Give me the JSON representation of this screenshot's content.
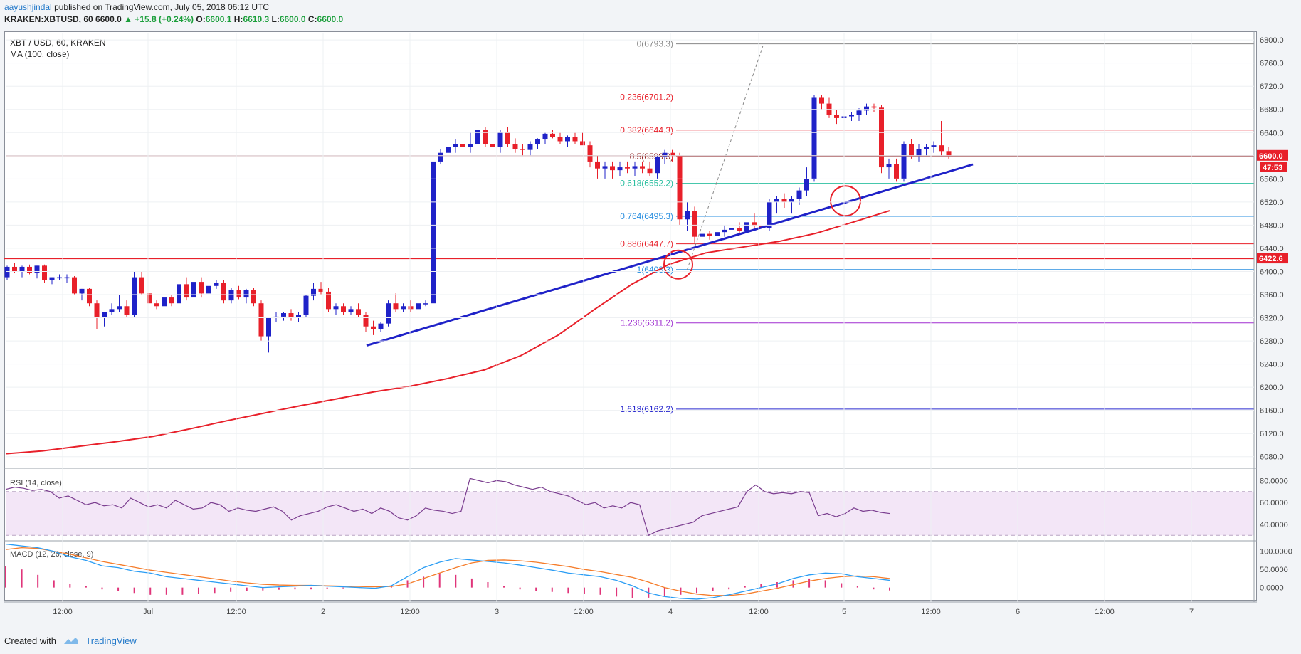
{
  "header": {
    "author": "aayushjindal",
    "published": "published on TradingView.com, July 05, 2018 06:12 UTC",
    "symbol": "KRAKEN:XBTUSD,",
    "tf": "60",
    "price": "6600.0",
    "change": "▲ +15.8 (+0.24%)",
    "o_label": "O:",
    "o_val": "6600.1",
    "h_label": "H:",
    "h_val": "6610.3",
    "l_label": "L:",
    "l_val": "6600.0",
    "c_label": "C:",
    "c_val": "6600.0"
  },
  "chart_title": "XBT / USD, 60, KRAKEN",
  "ma_label": "MA (100, close)",
  "rsi_label": "RSI (14, close)",
  "macd_label": "MACD (12, 26, close, 9)",
  "footer": {
    "created": "Created with",
    "brand": "TradingView"
  },
  "colors": {
    "up": "#1f22c8",
    "down": "#e8202a",
    "ma": "#e8202a",
    "trend": "#1f22c8",
    "support": "#e8202a",
    "rsi": "#7a3d8f",
    "macd": "#2a9df4",
    "signal": "#f57c2a",
    "hist": "#e0357a"
  },
  "chart_data": [
    {
      "type": "candlestick",
      "title": "XBT / USD, 60, KRAKEN",
      "y_ticks": [
        6080,
        6120,
        6160,
        6200,
        6240,
        6280,
        6320,
        6360,
        6400,
        6440,
        6480,
        6520,
        6560,
        6600,
        6640,
        6680,
        6720,
        6760,
        6800
      ],
      "x_ticks": [
        "12:00",
        "Jul",
        "12:00",
        "2",
        "12:00",
        "3",
        "12:00",
        "4",
        "12:00",
        "5",
        "12:00",
        "6",
        "12:00",
        "7"
      ],
      "ylim": [
        6060,
        6810
      ],
      "last_price": "6600.0",
      "countdown": "47:53",
      "support_price": "6422.6",
      "candles": [
        [
          6390,
          6410,
          6385,
          6408
        ],
        [
          6408,
          6415,
          6398,
          6400
        ],
        [
          6400,
          6410,
          6390,
          6408
        ],
        [
          6408,
          6412,
          6395,
          6398
        ],
        [
          6398,
          6410,
          6388,
          6410
        ],
        [
          6410,
          6412,
          6380,
          6385
        ],
        [
          6385,
          6390,
          6378,
          6390
        ],
        [
          6390,
          6395,
          6385,
          6390
        ],
        [
          6390,
          6395,
          6380,
          6390
        ],
        [
          6390,
          6392,
          6360,
          6362
        ],
        [
          6362,
          6370,
          6350,
          6370
        ],
        [
          6370,
          6372,
          6340,
          6345
        ],
        [
          6345,
          6350,
          6300,
          6320
        ],
        [
          6320,
          6330,
          6305,
          6330
        ],
        [
          6330,
          6345,
          6325,
          6335
        ],
        [
          6335,
          6360,
          6330,
          6340
        ],
        [
          6340,
          6350,
          6320,
          6325
        ],
        [
          6325,
          6400,
          6320,
          6390
        ],
        [
          6390,
          6400,
          6360,
          6362
        ],
        [
          6362,
          6365,
          6340,
          6345
        ],
        [
          6345,
          6350,
          6335,
          6340
        ],
        [
          6340,
          6360,
          6335,
          6355
        ],
        [
          6355,
          6360,
          6340,
          6345
        ],
        [
          6345,
          6382,
          6340,
          6378
        ],
        [
          6378,
          6390,
          6350,
          6355
        ],
        [
          6355,
          6385,
          6350,
          6382
        ],
        [
          6382,
          6390,
          6355,
          6362
        ],
        [
          6362,
          6380,
          6355,
          6375
        ],
        [
          6375,
          6385,
          6370,
          6380
        ],
        [
          6380,
          6385,
          6345,
          6350
        ],
        [
          6350,
          6372,
          6345,
          6368
        ],
        [
          6368,
          6375,
          6352,
          6355
        ],
        [
          6355,
          6370,
          6345,
          6368
        ],
        [
          6368,
          6372,
          6340,
          6345
        ],
        [
          6345,
          6350,
          6280,
          6288
        ],
        [
          6288,
          6320,
          6260,
          6320
        ],
        [
          6320,
          6330,
          6312,
          6322
        ],
        [
          6322,
          6330,
          6315,
          6328
        ],
        [
          6328,
          6335,
          6315,
          6320
        ],
        [
          6320,
          6330,
          6312,
          6325
        ],
        [
          6325,
          6360,
          6320,
          6358
        ],
        [
          6358,
          6380,
          6350,
          6370
        ],
        [
          6370,
          6382,
          6360,
          6365
        ],
        [
          6365,
          6372,
          6330,
          6335
        ],
        [
          6335,
          6345,
          6325,
          6340
        ],
        [
          6340,
          6345,
          6325,
          6330
        ],
        [
          6330,
          6340,
          6325,
          6335
        ],
        [
          6335,
          6345,
          6320,
          6325
        ],
        [
          6325,
          6330,
          6295,
          6305
        ],
        [
          6305,
          6315,
          6290,
          6300
        ],
        [
          6300,
          6312,
          6295,
          6310
        ],
        [
          6310,
          6350,
          6305,
          6345
        ],
        [
          6345,
          6362,
          6330,
          6335
        ],
        [
          6335,
          6345,
          6330,
          6340
        ],
        [
          6340,
          6350,
          6330,
          6335
        ],
        [
          6335,
          6350,
          6330,
          6345
        ],
        [
          6345,
          6350,
          6340,
          6345
        ],
        [
          6345,
          6600,
          6340,
          6590
        ],
        [
          6590,
          6612,
          6585,
          6605
        ],
        [
          6605,
          6625,
          6595,
          6615
        ],
        [
          6615,
          6628,
          6605,
          6620
        ],
        [
          6620,
          6640,
          6610,
          6615
        ],
        [
          6615,
          6640,
          6605,
          6620
        ],
        [
          6620,
          6648,
          6610,
          6645
        ],
        [
          6645,
          6650,
          6615,
          6620
        ],
        [
          6620,
          6640,
          6610,
          6615
        ],
        [
          6615,
          6645,
          6605,
          6640
        ],
        [
          6640,
          6650,
          6615,
          6620
        ],
        [
          6620,
          6630,
          6605,
          6612
        ],
        [
          6612,
          6620,
          6600,
          6610
        ],
        [
          6610,
          6625,
          6600,
          6620
        ],
        [
          6620,
          6630,
          6612,
          6628
        ],
        [
          6628,
          6640,
          6620,
          6638
        ],
        [
          6638,
          6645,
          6630,
          6632
        ],
        [
          6632,
          6640,
          6620,
          6625
        ],
        [
          6625,
          6635,
          6615,
          6632
        ],
        [
          6632,
          6640,
          6620,
          6625
        ],
        [
          6625,
          6640,
          6620,
          6618
        ],
        [
          6618,
          6625,
          6580,
          6590
        ],
        [
          6590,
          6600,
          6560,
          6578
        ],
        [
          6578,
          6590,
          6560,
          6582
        ],
        [
          6582,
          6590,
          6560,
          6575
        ],
        [
          6575,
          6590,
          6565,
          6580
        ],
        [
          6580,
          6590,
          6570,
          6578
        ],
        [
          6578,
          6590,
          6565,
          6582
        ],
        [
          6582,
          6590,
          6570,
          6578
        ],
        [
          6578,
          6590,
          6565,
          6570
        ],
        [
          6570,
          6600,
          6560,
          6598
        ],
        [
          6598,
          6610,
          6585,
          6605
        ],
        [
          6605,
          6610,
          6590,
          6600
        ],
        [
          6600,
          6605,
          6480,
          6490
        ],
        [
          6490,
          6520,
          6470,
          6505
        ],
        [
          6505,
          6512,
          6450,
          6460
        ],
        [
          6460,
          6470,
          6445,
          6465
        ],
        [
          6465,
          6470,
          6455,
          6462
        ],
        [
          6462,
          6475,
          6455,
          6468
        ],
        [
          6468,
          6480,
          6460,
          6472
        ],
        [
          6472,
          6490,
          6465,
          6475
        ],
        [
          6475,
          6485,
          6465,
          6470
        ],
        [
          6470,
          6500,
          6468,
          6485
        ],
        [
          6485,
          6500,
          6475,
          6478
        ],
        [
          6478,
          6490,
          6470,
          6475
        ],
        [
          6475,
          6525,
          6470,
          6520
        ],
        [
          6520,
          6530,
          6500,
          6525
        ],
        [
          6525,
          6535,
          6510,
          6520
        ],
        [
          6520,
          6530,
          6500,
          6525
        ],
        [
          6525,
          6545,
          6515,
          6540
        ],
        [
          6540,
          6580,
          6530,
          6560
        ],
        [
          6560,
          6705,
          6555,
          6700
        ],
        [
          6700,
          6705,
          6680,
          6690
        ],
        [
          6690,
          6700,
          6665,
          6670
        ],
        [
          6670,
          6680,
          6655,
          6665
        ],
        [
          6665,
          6675,
          6655,
          6668
        ],
        [
          6668,
          6675,
          6660,
          6670
        ],
        [
          6670,
          6682,
          6660,
          6678
        ],
        [
          6678,
          6690,
          6670,
          6685
        ],
        [
          6685,
          6690,
          6675,
          6683
        ],
        [
          6683,
          6688,
          6570,
          6580
        ],
        [
          6580,
          6595,
          6560,
          6585
        ],
        [
          6585,
          6595,
          6555,
          6560
        ],
        [
          6560,
          6625,
          6555,
          6620
        ],
        [
          6620,
          6628,
          6595,
          6600
        ],
        [
          6600,
          6620,
          6590,
          6612
        ],
        [
          6612,
          6620,
          6600,
          6615
        ],
        [
          6615,
          6625,
          6605,
          6618
        ],
        [
          6618,
          6660,
          6600,
          6608
        ],
        [
          6608,
          6615,
          6595,
          6600
        ]
      ],
      "ma": [
        [
          0,
          6085
        ],
        [
          1,
          6090
        ],
        [
          2,
          6098
        ],
        [
          3,
          6106
        ],
        [
          4,
          6115
        ],
        [
          5,
          6128
        ],
        [
          6,
          6142
        ],
        [
          7,
          6155
        ],
        [
          8,
          6168
        ],
        [
          9,
          6180
        ],
        [
          10,
          6192
        ],
        [
          11,
          6202
        ],
        [
          12,
          6215
        ],
        [
          13,
          6230
        ],
        [
          14,
          6255
        ],
        [
          15,
          6290
        ],
        [
          16,
          6335
        ],
        [
          17,
          6378
        ],
        [
          18,
          6412
        ],
        [
          19,
          6432
        ],
        [
          20,
          6442
        ],
        [
          21,
          6452
        ],
        [
          22,
          6466
        ],
        [
          23,
          6485
        ],
        [
          24,
          6505
        ]
      ],
      "fib_levels": [
        {
          "label": "0(6793.3)",
          "value": 6793.3,
          "color": "#888888"
        },
        {
          "label": "0.236(6701.2)",
          "value": 6701.2,
          "color": "#e8202a"
        },
        {
          "label": "0.382(6644.3)",
          "value": 6644.3,
          "color": "#e8202a"
        },
        {
          "label": "0.5(6598.3)",
          "value": 6598.3,
          "color": "#8b1a1a"
        },
        {
          "label": "0.618(6552.2)",
          "value": 6552.2,
          "color": "#2bbfa0"
        },
        {
          "label": "0.764(6495.3)",
          "value": 6495.3,
          "color": "#2a8fe0"
        },
        {
          "label": "0.886(6447.7)",
          "value": 6447.7,
          "color": "#e8202a"
        },
        {
          "label": "1(6403.3)",
          "value": 6403.3,
          "color": "#2a8fe0"
        },
        {
          "label": "1.236(6311.2)",
          "value": 6311.2,
          "color": "#a02fd1"
        },
        {
          "label": "1.618(6162.2)",
          "value": 6162.2,
          "color": "#2a2acf"
        }
      ]
    },
    {
      "type": "line",
      "title": "RSI (14, close)",
      "y_ticks": [
        40,
        60,
        80
      ],
      "ylim": [
        25,
        90
      ],
      "bands": [
        30,
        70
      ],
      "values": [
        72,
        74,
        73,
        71,
        72,
        70,
        64,
        66,
        62,
        58,
        60,
        57,
        58,
        55,
        64,
        60,
        56,
        58,
        55,
        62,
        58,
        54,
        55,
        60,
        58,
        52,
        55,
        53,
        52,
        54,
        56,
        52,
        44,
        48,
        50,
        52,
        56,
        58,
        55,
        52,
        54,
        50,
        55,
        52,
        46,
        44,
        48,
        55,
        53,
        52,
        50,
        52,
        82,
        80,
        78,
        80,
        79,
        76,
        74,
        72,
        74,
        70,
        68,
        66,
        62,
        58,
        60,
        55,
        57,
        55,
        60,
        58,
        30,
        34,
        36,
        38,
        40,
        42,
        48,
        50,
        52,
        54,
        56,
        70,
        76,
        70,
        68,
        69,
        68,
        70,
        69,
        48,
        50,
        47,
        50,
        55,
        52,
        53,
        51,
        50
      ]
    },
    {
      "type": "line",
      "title": "MACD (12, 26, close, 9)",
      "y_ticks": [
        0,
        50,
        100
      ],
      "ylim": [
        -40,
        125
      ],
      "macd": [
        120,
        115,
        110,
        100,
        85,
        75,
        60,
        55,
        45,
        40,
        30,
        25,
        20,
        15,
        10,
        5,
        0,
        2,
        4,
        6,
        4,
        2,
        0,
        -2,
        5,
        30,
        55,
        70,
        80,
        76,
        72,
        68,
        62,
        55,
        48,
        40,
        35,
        30,
        20,
        5,
        -15,
        -25,
        -30,
        -32,
        -28,
        -20,
        -10,
        0,
        10,
        25,
        35,
        40,
        38,
        30,
        25,
        20
      ],
      "signal": [
        105,
        110,
        108,
        100,
        92,
        82,
        72,
        64,
        56,
        48,
        42,
        36,
        30,
        24,
        18,
        13,
        9,
        7,
        6,
        6,
        5,
        4,
        3,
        2,
        3,
        10,
        25,
        40,
        55,
        68,
        75,
        76,
        74,
        70,
        64,
        58,
        50,
        44,
        36,
        28,
        15,
        0,
        -10,
        -18,
        -22,
        -22,
        -18,
        -10,
        -2,
        8,
        18,
        25,
        30,
        32,
        30,
        25
      ],
      "hist": [
        60,
        50,
        35,
        20,
        10,
        5,
        -5,
        -10,
        -15,
        -20,
        -20,
        -20,
        -18,
        -15,
        -12,
        -10,
        -8,
        -6,
        -5,
        -5,
        -3,
        -2,
        -1,
        0,
        5,
        20,
        30,
        40,
        35,
        25,
        15,
        5,
        -5,
        -10,
        -12,
        -15,
        -18,
        -20,
        -25,
        -30,
        -28,
        -25,
        -20,
        -15,
        -10,
        -5,
        5,
        10,
        15,
        20,
        25,
        20,
        12,
        5,
        -5,
        -8
      ]
    }
  ]
}
